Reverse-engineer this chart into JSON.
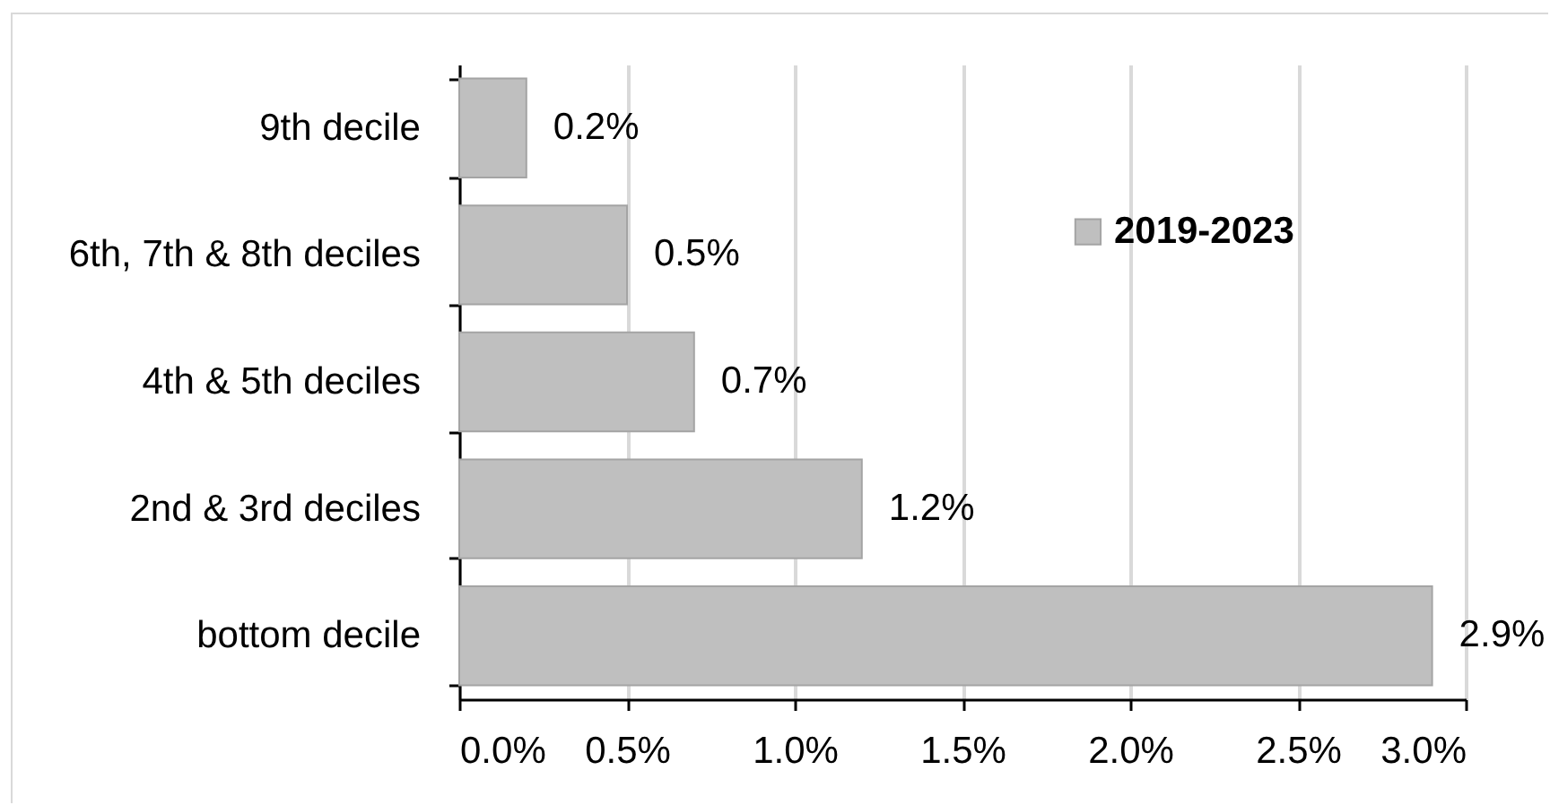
{
  "chart_data": {
    "type": "bar",
    "orientation": "horizontal",
    "categories": [
      "9th decile",
      "6th, 7th & 8th deciles",
      "4th & 5th deciles",
      "2nd & 3rd deciles",
      "bottom decile"
    ],
    "series": [
      {
        "name": "2019-2023",
        "color": "#bfbfbf",
        "values": [
          0.2,
          0.5,
          0.7,
          1.2,
          2.9
        ],
        "value_labels": [
          "0.2%",
          "0.5%",
          "0.7%",
          "1.2%",
          "2.9%"
        ]
      }
    ],
    "xlim": [
      0,
      3
    ],
    "xticks": [
      {
        "value": 0,
        "label": "0.0%"
      },
      {
        "value": 0.5,
        "label": "0.5%"
      },
      {
        "value": 1,
        "label": "1.0%"
      },
      {
        "value": 1.5,
        "label": "1.5%"
      },
      {
        "value": 2,
        "label": "2.0%"
      },
      {
        "value": 2.5,
        "label": "2.5%"
      },
      {
        "value": 3,
        "label": "3.0%"
      }
    ],
    "grid": "x",
    "legend": "top right"
  }
}
